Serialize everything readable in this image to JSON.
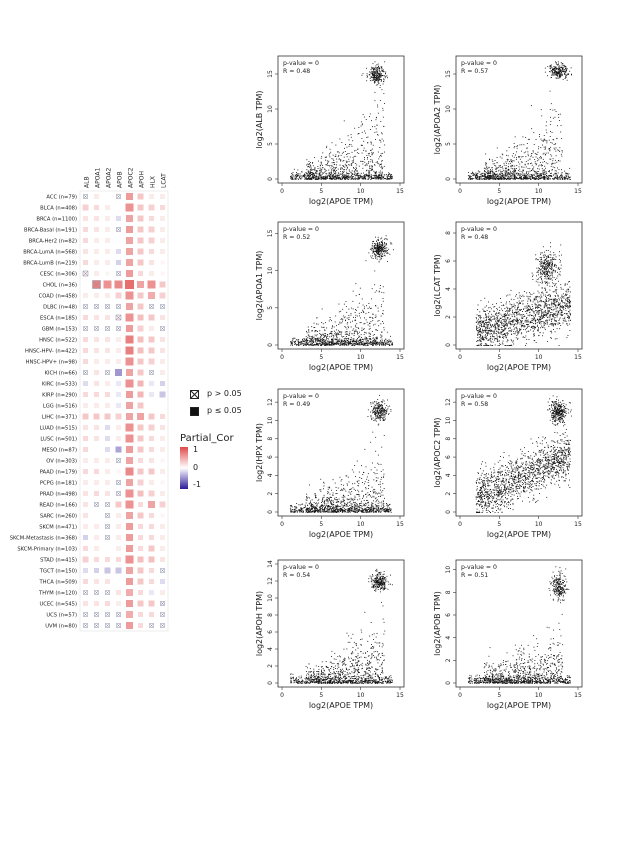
{
  "chart_data": [
    {
      "type": "heatmap",
      "columns": [
        "ALB",
        "APOA1",
        "APOA2",
        "APOB",
        "APOC2",
        "APOH",
        "HLX",
        "LCAT"
      ],
      "rows": [
        "ACC (n=79)",
        "BLCA (n=408)",
        "BRCA (n=1100)",
        "BRCA-Basal (n=191)",
        "BRCA-Her2 (n=82)",
        "BRCA-LumA (n=568)",
        "BRCA-LumB (n=219)",
        "CESC (n=306)",
        "CHOL (n=36)",
        "COAD (n=458)",
        "DLBC (n=48)",
        "ESCA (n=185)",
        "GBM (n=153)",
        "HNSC (n=522)",
        "HNSC-HPV- (n=422)",
        "HNSC-HPV+ (n=98)",
        "KICH (n=66)",
        "KIRC (n=533)",
        "KIRP (n=290)",
        "LGG (n=516)",
        "LIHC (n=371)",
        "LUAD (n=515)",
        "LUSC (n=501)",
        "MESO (n=87)",
        "OV (n=303)",
        "PAAD (n=179)",
        "PCPG (n=181)",
        "PRAD (n=498)",
        "READ (n=166)",
        "SARC (n=260)",
        "SKCM (n=471)",
        "SKCM-Metastasis (n=368)",
        "SKCM-Primary (n=103)",
        "STAD (n=415)",
        "TGCT (n=150)",
        "THCA (n=509)",
        "THYM (n=120)",
        "UCEC (n=545)",
        "UCS (n=57)",
        "UVM (n=80)"
      ],
      "values": [
        [
          0,
          0.1,
          0,
          0,
          0.55,
          0.3,
          0.1,
          0.1
        ],
        [
          0.25,
          0.2,
          0.1,
          0,
          0.6,
          0.3,
          0.25,
          0.2
        ],
        [
          0.15,
          0.15,
          0.1,
          -0.15,
          0.5,
          0.3,
          0.2,
          0.1
        ],
        [
          0.2,
          0.15,
          0.1,
          0,
          0.55,
          0.3,
          0.25,
          0.1
        ],
        [
          0.2,
          0.1,
          0.1,
          0,
          0.5,
          0.3,
          0.25,
          0.1
        ],
        [
          0.15,
          0.1,
          0.1,
          -0.15,
          0.5,
          0.3,
          0.2,
          0.1
        ],
        [
          0.2,
          0.1,
          0.1,
          -0.2,
          0.5,
          0.3,
          0.15,
          0.05
        ],
        [
          0.1,
          0.1,
          0.05,
          0,
          0.55,
          0.2,
          0.1,
          0.05
        ],
        [
          0,
          0.7,
          0.6,
          0.65,
          0.8,
          0.5,
          0.6,
          0.3
        ],
        [
          0.1,
          0.1,
          0.1,
          0.25,
          0.6,
          0.3,
          0.45,
          0.25
        ],
        [
          0,
          0,
          0,
          0,
          0.5,
          0.3,
          0,
          0
        ],
        [
          0.2,
          0.15,
          0.15,
          0.1,
          0.6,
          0.35,
          0.3,
          0.15
        ],
        [
          0,
          0,
          0,
          0,
          0.55,
          0.25,
          0.1,
          0
        ],
        [
          0.2,
          0.15,
          0.15,
          0.1,
          0.7,
          0.35,
          0.3,
          0.15
        ],
        [
          0.2,
          0.15,
          0.15,
          0.1,
          0.7,
          0.35,
          0.3,
          0.15
        ],
        [
          0.2,
          0.1,
          0.1,
          0.1,
          0.6,
          0.3,
          0.25,
          0.1
        ],
        [
          0,
          0.15,
          0,
          -0.45,
          0.5,
          0.3,
          0,
          0.1
        ],
        [
          -0.15,
          0.15,
          0.1,
          -0.1,
          0.6,
          0.4,
          -0.1,
          -0.2
        ],
        [
          0.2,
          0.2,
          0.2,
          -0.1,
          0.55,
          0.4,
          -0.1,
          -0.25
        ],
        [
          0.1,
          0.1,
          0.1,
          -0.1,
          0.5,
          0.3,
          0,
          0
        ],
        [
          0.3,
          0.3,
          0.3,
          0.25,
          0.5,
          0.5,
          0.3,
          0.2
        ],
        [
          0.15,
          0.15,
          -0.15,
          0.1,
          0.6,
          0.3,
          0.25,
          0.15
        ],
        [
          0.2,
          0.15,
          -0.15,
          0.1,
          0.6,
          0.3,
          0.2,
          0.1
        ],
        [
          0.2,
          0,
          -0.15,
          -0.4,
          0.55,
          0.3,
          0.2,
          0.1
        ],
        [
          0.1,
          0.1,
          0.1,
          0,
          0.5,
          0.2,
          0.15,
          0.05
        ],
        [
          0.2,
          0.2,
          0.1,
          0.05,
          0.65,
          0.3,
          0.3,
          0.1
        ],
        [
          0.1,
          0.1,
          0.1,
          0,
          0.5,
          0.25,
          0.1,
          0.05
        ],
        [
          0.15,
          0.2,
          0.15,
          0,
          0.6,
          0.35,
          0.25,
          0.1
        ],
        [
          0.15,
          0,
          0,
          0.3,
          0.6,
          0.2,
          0.5,
          0.25
        ],
        [
          0.15,
          0,
          0,
          0.1,
          0.5,
          0.3,
          0.2,
          0.05
        ],
        [
          0.1,
          0.1,
          0,
          0.1,
          0.55,
          0.2,
          0.2,
          0.1
        ],
        [
          -0.2,
          0.1,
          0,
          0.1,
          0.55,
          0.2,
          0.2,
          0.1
        ],
        [
          0.2,
          0.1,
          0,
          0.1,
          0.55,
          0.2,
          0.3,
          0.1
        ],
        [
          0.25,
          0.2,
          0.2,
          0.2,
          0.6,
          0.35,
          0.35,
          0.15
        ],
        [
          -0.15,
          -0.2,
          -0.25,
          -0.25,
          0.5,
          0.3,
          0.2,
          0
        ],
        [
          0.2,
          0.15,
          0.15,
          0,
          0.55,
          0.3,
          0.2,
          -0.15
        ],
        [
          0,
          0,
          0,
          0.15,
          0.45,
          0.2,
          -0.1,
          0.1
        ],
        [
          0.15,
          0.15,
          0.2,
          0.1,
          0.55,
          0.3,
          0.3,
          0.05
        ],
        [
          0,
          0,
          0,
          0,
          0.45,
          0.2,
          0.2,
          0
        ],
        [
          0,
          0,
          0,
          0,
          0.55,
          0.2,
          0,
          0
        ]
      ],
      "insignificant": [
        [
          0,
          0
        ],
        [
          0,
          3
        ],
        [
          3,
          3
        ],
        [
          7,
          0
        ],
        [
          7,
          3
        ],
        [
          8,
          1
        ],
        [
          10,
          0
        ],
        [
          10,
          1
        ],
        [
          10,
          2
        ],
        [
          10,
          3
        ],
        [
          10,
          6
        ],
        [
          10,
          7
        ],
        [
          11,
          3
        ],
        [
          12,
          0
        ],
        [
          12,
          1
        ],
        [
          12,
          2
        ],
        [
          12,
          3
        ],
        [
          12,
          7
        ],
        [
          16,
          0
        ],
        [
          16,
          2
        ],
        [
          16,
          6
        ],
        [
          24,
          3
        ],
        [
          26,
          3
        ],
        [
          27,
          3
        ],
        [
          28,
          1
        ],
        [
          28,
          2
        ],
        [
          29,
          2
        ],
        [
          30,
          2
        ],
        [
          31,
          2
        ],
        [
          34,
          7
        ],
        [
          36,
          0
        ],
        [
          36,
          1
        ],
        [
          36,
          2
        ],
        [
          37,
          7
        ],
        [
          38,
          0
        ],
        [
          38,
          1
        ],
        [
          38,
          2
        ],
        [
          38,
          3
        ],
        [
          38,
          7
        ],
        [
          39,
          0
        ],
        [
          39,
          1
        ],
        [
          39,
          2
        ],
        [
          39,
          3
        ],
        [
          39,
          6
        ],
        [
          39,
          7
        ]
      ],
      "legend": {
        "insignificant_label": "p > 0.05",
        "significant_label": "p ≤ 0.05",
        "colorbar_title": "Partial_Cor",
        "colorbar_ticks": [
          "1",
          "0",
          "-1"
        ]
      }
    },
    {
      "type": "scatter",
      "pvalue": "p-value = 0",
      "r": "R = 0.48",
      "ylabel": "log2(ALB TPM)",
      "xlabel": "log2(APOE TPM)",
      "xlim": [
        0,
        15
      ],
      "ylim": [
        0,
        17
      ],
      "yticks": [
        0,
        5,
        10,
        15
      ],
      "xticks": [
        0,
        5,
        10,
        15
      ],
      "cluster": [
        12,
        15
      ],
      "cluster_spread": [
        1,
        1
      ],
      "trend": 0.7
    },
    {
      "type": "scatter",
      "pvalue": "p-value = 0",
      "r": "R = 0.57",
      "ylabel": "log2(APOA2 TPM)",
      "xlabel": "log2(APOE TPM)",
      "xlim": [
        0,
        15
      ],
      "ylim": [
        0,
        17
      ],
      "yticks": [
        0,
        5,
        10,
        15
      ],
      "xticks": [
        0,
        5,
        10,
        15
      ],
      "cluster": [
        12.5,
        15.5
      ],
      "cluster_spread": [
        1,
        0.9
      ],
      "trend": 0.8
    },
    {
      "type": "scatter",
      "pvalue": "p-value = 0",
      "r": "R = 0.52",
      "ylabel": "log2(APOA1 TPM)",
      "xlabel": "log2(APOE TPM)",
      "xlim": [
        0,
        15
      ],
      "ylim": [
        0,
        16
      ],
      "yticks": [
        0,
        5,
        10,
        15
      ],
      "xticks": [
        0,
        5,
        10,
        15
      ],
      "cluster": [
        12.3,
        13
      ],
      "cluster_spread": [
        0.9,
        1.1
      ],
      "trend": 0.7
    },
    {
      "type": "scatter",
      "pvalue": "p-value = 0",
      "r": "R = 0.48",
      "ylabel": "log2(LCAT TPM)",
      "xlabel": "log2(APOE TPM)",
      "xlim": [
        0,
        15
      ],
      "ylim": [
        0,
        8.5
      ],
      "yticks": [
        0,
        2,
        4,
        6,
        8
      ],
      "xticks": [
        0,
        5,
        10,
        15
      ],
      "cluster": [
        11,
        5.5
      ],
      "cluster_spread": [
        1.2,
        1
      ],
      "trend": 0.4,
      "broad": true
    },
    {
      "type": "scatter",
      "pvalue": "p-value = 0",
      "r": "R = 0.49",
      "ylabel": "log2(HPX TPM)",
      "xlabel": "log2(APOE TPM)",
      "xlim": [
        0,
        15
      ],
      "ylim": [
        0,
        13
      ],
      "yticks": [
        0,
        2,
        4,
        6,
        8,
        10,
        12
      ],
      "xticks": [
        0,
        5,
        10,
        15
      ],
      "cluster": [
        12.3,
        11
      ],
      "cluster_spread": [
        0.9,
        1
      ],
      "trend": 0.6
    },
    {
      "type": "scatter",
      "pvalue": "p-value = 0",
      "r": "R = 0.58",
      "ylabel": "log2(APOC2 TPM)",
      "xlabel": "log2(APOE TPM)",
      "xlim": [
        0,
        15
      ],
      "ylim": [
        0,
        13
      ],
      "yticks": [
        0,
        2,
        4,
        6,
        8,
        10,
        12
      ],
      "xticks": [
        0,
        5,
        10,
        15
      ],
      "cluster": [
        12.5,
        11
      ],
      "cluster_spread": [
        0.9,
        1
      ],
      "trend": 0.65,
      "broad": true
    },
    {
      "type": "scatter",
      "pvalue": "p-value = 0",
      "r": "R = 0.54",
      "ylabel": "log2(APOH TPM)",
      "xlabel": "log2(APOE TPM)",
      "xlim": [
        0,
        15
      ],
      "ylim": [
        0,
        14
      ],
      "yticks": [
        0,
        2,
        4,
        6,
        8,
        10,
        12,
        14
      ],
      "xticks": [
        0,
        5,
        10,
        15
      ],
      "cluster": [
        12.3,
        12
      ],
      "cluster_spread": [
        0.9,
        0.8
      ],
      "trend": 0.6
    },
    {
      "type": "scatter",
      "pvalue": "p-value = 0",
      "r": "R = 0.51",
      "ylabel": "log2(APOB TPM)",
      "xlabel": "log2(APOE TPM)",
      "xlim": [
        0,
        15
      ],
      "ylim": [
        0,
        10.5
      ],
      "yticks": [
        0,
        2,
        4,
        6,
        8,
        10
      ],
      "xticks": [
        0,
        5,
        10,
        15
      ],
      "cluster": [
        12.5,
        8.5
      ],
      "cluster_spread": [
        0.8,
        1
      ],
      "trend": 0.45
    }
  ]
}
